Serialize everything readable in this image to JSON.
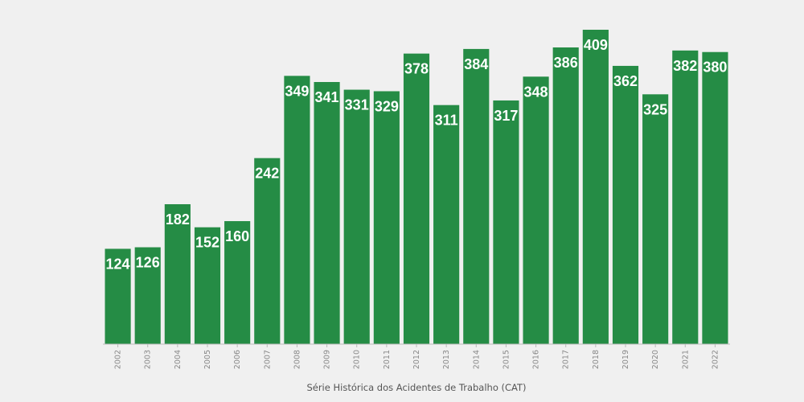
{
  "chart_data": {
    "type": "bar",
    "categories": [
      "2002",
      "2003",
      "2004",
      "2005",
      "2006",
      "2007",
      "2008",
      "2009",
      "2010",
      "2011",
      "2012",
      "2013",
      "2014",
      "2015",
      "2016",
      "2017",
      "2018",
      "2019",
      "2020",
      "2021",
      "2022"
    ],
    "values": [
      124,
      126,
      182,
      152,
      160,
      242,
      349,
      341,
      331,
      329,
      378,
      311,
      384,
      317,
      348,
      386,
      409,
      362,
      325,
      382,
      380
    ],
    "title": "",
    "xlabel": "Série Histórica dos Acidentes de Trabalho (CAT)",
    "ylabel": "",
    "ylim": [
      0,
      420
    ],
    "grid": false,
    "legend": "none",
    "bar_color": "#258c45",
    "data_label_color": "#ffffff"
  }
}
